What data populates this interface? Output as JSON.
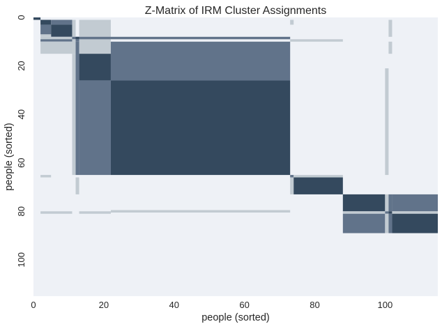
{
  "chart_data": {
    "type": "heatmap",
    "title": "Z-Matrix of IRM Cluster Assignments",
    "xlabel": "people (sorted)",
    "ylabel": "people (sorted)",
    "xlim": [
      0,
      115
    ],
    "ylim": [
      115,
      0
    ],
    "xticks": [
      0,
      20,
      40,
      60,
      80,
      100
    ],
    "yticks": [
      0,
      20,
      40,
      60,
      80,
      100
    ],
    "grid": false,
    "colorbar": false,
    "colormap": {
      "background": "#eef1f6",
      "low": "#c2cbd2",
      "mid": "#61738a",
      "high": "#34495e"
    },
    "cells": [
      {
        "x": [
          0,
          2
        ],
        "y": [
          0,
          1
        ],
        "level": "high"
      },
      {
        "x": [
          2,
          5
        ],
        "y": [
          1,
          3
        ],
        "level": "high"
      },
      {
        "x": [
          5,
          11
        ],
        "y": [
          1,
          3
        ],
        "level": "mid"
      },
      {
        "x": [
          2,
          5
        ],
        "y": [
          3,
          7
        ],
        "level": "mid"
      },
      {
        "x": [
          5,
          11
        ],
        "y": [
          3,
          8
        ],
        "level": "high"
      },
      {
        "x": [
          2,
          5
        ],
        "y": [
          7,
          8
        ],
        "level": "low"
      },
      {
        "x": [
          11,
          12
        ],
        "y": [
          1,
          12
        ],
        "level": "low"
      },
      {
        "x": [
          13,
          22
        ],
        "y": [
          1,
          12
        ],
        "level": "low"
      },
      {
        "x": [
          73,
          74
        ],
        "y": [
          1,
          3
        ],
        "level": "low"
      },
      {
        "x": [
          101,
          102
        ],
        "y": [
          1,
          8
        ],
        "level": "low"
      },
      {
        "x": [
          2,
          11
        ],
        "y": [
          8,
          9
        ],
        "level": "low"
      },
      {
        "x": [
          2,
          11
        ],
        "y": [
          9,
          10
        ],
        "level": "mid"
      },
      {
        "x": [
          2,
          11
        ],
        "y": [
          10,
          11
        ],
        "level": "low"
      },
      {
        "x": [
          11,
          22
        ],
        "y": [
          8,
          9
        ],
        "level": "mid"
      },
      {
        "x": [
          12,
          13
        ],
        "y": [
          8,
          9
        ],
        "level": "high"
      },
      {
        "x": [
          22,
          73
        ],
        "y": [
          8,
          9
        ],
        "level": "mid"
      },
      {
        "x": [
          12,
          13
        ],
        "y": [
          9,
          10
        ],
        "level": "mid"
      },
      {
        "x": [
          11,
          12
        ],
        "y": [
          9,
          15
        ],
        "level": "low"
      },
      {
        "x": [
          73,
          88
        ],
        "y": [
          9,
          10
        ],
        "level": "low"
      },
      {
        "x": [
          2,
          11
        ],
        "y": [
          10,
          15
        ],
        "level": "low"
      },
      {
        "x": [
          13,
          22
        ],
        "y": [
          10,
          15
        ],
        "level": "low"
      },
      {
        "x": [
          13,
          22
        ],
        "y": [
          15,
          26
        ],
        "level": "high"
      },
      {
        "x": [
          22,
          73
        ],
        "y": [
          10,
          26
        ],
        "level": "mid"
      },
      {
        "x": [
          101,
          102
        ],
        "y": [
          10,
          15
        ],
        "level": "low"
      },
      {
        "x": [
          11,
          12
        ],
        "y": [
          15,
          65
        ],
        "level": "low"
      },
      {
        "x": [
          12,
          13
        ],
        "y": [
          10,
          65
        ],
        "level": "mid"
      },
      {
        "x": [
          13,
          22
        ],
        "y": [
          26,
          65
        ],
        "level": "mid"
      },
      {
        "x": [
          22,
          73
        ],
        "y": [
          26,
          65
        ],
        "level": "high"
      },
      {
        "x": [
          100,
          101
        ],
        "y": [
          21,
          65
        ],
        "level": "low"
      },
      {
        "x": [
          2,
          5
        ],
        "y": [
          65,
          66
        ],
        "level": "low"
      },
      {
        "x": [
          12,
          13
        ],
        "y": [
          66,
          73
        ],
        "level": "low"
      },
      {
        "x": [
          73,
          74
        ],
        "y": [
          65,
          66
        ],
        "level": "mid"
      },
      {
        "x": [
          74,
          88
        ],
        "y": [
          65,
          66
        ],
        "level": "low"
      },
      {
        "x": [
          73,
          74
        ],
        "y": [
          66,
          73
        ],
        "level": "low"
      },
      {
        "x": [
          74,
          88
        ],
        "y": [
          66,
          73
        ],
        "level": "high"
      },
      {
        "x": [
          88,
          100
        ],
        "y": [
          73,
          80
        ],
        "level": "high"
      },
      {
        "x": [
          100,
          101
        ],
        "y": [
          73,
          80
        ],
        "level": "low"
      },
      {
        "x": [
          101,
          102
        ],
        "y": [
          73,
          80
        ],
        "level": "mid"
      },
      {
        "x": [
          102,
          115
        ],
        "y": [
          73,
          80
        ],
        "level": "mid"
      },
      {
        "x": [
          2,
          11
        ],
        "y": [
          80,
          81
        ],
        "level": "low"
      },
      {
        "x": [
          13,
          22
        ],
        "y": [
          80,
          81
        ],
        "level": "low"
      },
      {
        "x": [
          22,
          73
        ],
        "y": [
          79.5,
          80.5
        ],
        "level": "low"
      },
      {
        "x": [
          88,
          100
        ],
        "y": [
          80,
          81
        ],
        "level": "low"
      },
      {
        "x": [
          100,
          101
        ],
        "y": [
          80,
          81
        ],
        "level": "mid"
      },
      {
        "x": [
          101,
          102
        ],
        "y": [
          80,
          81
        ],
        "level": "high"
      },
      {
        "x": [
          102,
          115
        ],
        "y": [
          80,
          81
        ],
        "level": "low"
      },
      {
        "x": [
          88,
          100
        ],
        "y": [
          81,
          89
        ],
        "level": "mid"
      },
      {
        "x": [
          100,
          101
        ],
        "y": [
          81,
          89
        ],
        "level": "low"
      },
      {
        "x": [
          101,
          102
        ],
        "y": [
          81,
          89
        ],
        "level": "mid"
      },
      {
        "x": [
          102,
          115
        ],
        "y": [
          81,
          89
        ],
        "level": "high"
      }
    ]
  }
}
